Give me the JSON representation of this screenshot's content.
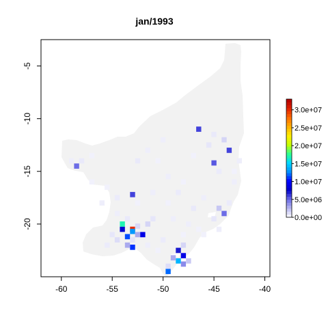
{
  "title": "jan/1993",
  "chart_data": {
    "type": "heatmap",
    "xlim": [
      -62,
      -39.5
    ],
    "ylim": [
      -25,
      -2.5
    ],
    "x_ticks": [
      -60,
      -55,
      -50,
      -45,
      -40
    ],
    "x_tick_labels": [
      "-60",
      "-55",
      "-50",
      "-45",
      "-40"
    ],
    "y_ticks": [
      -5,
      -10,
      -15,
      -20
    ],
    "y_tick_labels": [
      "-5",
      "-10",
      "-15",
      "-20"
    ],
    "legend": {
      "position": "right",
      "range": [
        0,
        33000000
      ],
      "ticks": [
        0,
        5000000,
        10000000,
        15000000,
        20000000,
        25000000,
        30000000
      ],
      "tick_labels": [
        "0.0e+00",
        "5.0e+06",
        "1.0e+07",
        "1.5e+07",
        "2.0e+07",
        "2.5e+07",
        "3.0e+07"
      ],
      "colors": [
        "#ffffff",
        "#b8b8f0",
        "#6a6ae6",
        "#0000c8",
        "#0000ff",
        "#0090ff",
        "#00d8ff",
        "#30ff90",
        "#c8ff00",
        "#ffee00",
        "#ffb000",
        "#ff6a00",
        "#e02000",
        "#b00000"
      ]
    },
    "background_color": "#f2f2f2",
    "cells": [
      [
        -48.5,
        -23.5,
        14000000
      ],
      [
        -48.0,
        -23.0,
        9000000
      ],
      [
        -49.5,
        -24.5,
        12000000
      ],
      [
        -48.5,
        -22.5,
        7000000
      ],
      [
        -48.0,
        -23.8,
        4000000
      ],
      [
        -49.0,
        -23.2,
        3000000
      ],
      [
        -47.5,
        -23.5,
        2000000
      ],
      [
        -48.0,
        -22.0,
        1500000
      ],
      [
        -49.5,
        -24.0,
        1200000
      ],
      [
        -53.0,
        -20.5,
        30000000
      ],
      [
        -53.0,
        -20.7,
        13000000
      ],
      [
        -53.0,
        -22.2,
        11000000
      ],
      [
        -53.5,
        -21.2,
        11500000
      ],
      [
        -54.0,
        -20.5,
        8000000
      ],
      [
        -52.5,
        -21.0,
        3000000
      ],
      [
        -52.0,
        -21.0,
        9000000
      ],
      [
        -54.0,
        -20.0,
        17000000
      ],
      [
        -53.5,
        -22.0,
        3000000
      ],
      [
        -51.5,
        -20.0,
        1500000
      ],
      [
        -54.5,
        -21.5,
        1200000
      ],
      [
        -53.0,
        -21.5,
        1000000
      ],
      [
        -52.5,
        -20.2,
        1400000
      ],
      [
        -55.0,
        -21.0,
        900000
      ],
      [
        -55.5,
        -22.0,
        700000
      ],
      [
        -53.5,
        -19.5,
        800000
      ],
      [
        -51.0,
        -19.5,
        900000
      ],
      [
        -54.5,
        -19.0,
        600000
      ],
      [
        -53.0,
        -17.2,
        6000000
      ],
      [
        -52.5,
        -14.0,
        800000
      ],
      [
        -51.5,
        -13.0,
        600000
      ],
      [
        -58.5,
        -14.5,
        5000000
      ],
      [
        -58.0,
        -14.0,
        800000
      ],
      [
        -59.0,
        -14.0,
        600000
      ],
      [
        -57.0,
        -13.5,
        500000
      ],
      [
        -43.5,
        -13.0,
        6000000
      ],
      [
        -45.0,
        -14.2,
        5500000
      ],
      [
        -46.5,
        -11.0,
        6000000
      ],
      [
        -44.0,
        -12.0,
        1500000
      ],
      [
        -45.5,
        -12.5,
        900000
      ],
      [
        -45.0,
        -11.5,
        800000
      ],
      [
        -44.5,
        -15.0,
        700000
      ],
      [
        -43.0,
        -16.0,
        600000
      ],
      [
        -44.0,
        -19.0,
        5000000
      ],
      [
        -44.5,
        -18.5,
        2000000
      ],
      [
        -45.0,
        -19.5,
        900000
      ],
      [
        -47.0,
        -18.5,
        800000
      ],
      [
        -46.0,
        -17.5,
        600000
      ],
      [
        -43.5,
        -18.0,
        700000
      ],
      [
        -48.5,
        -17.0,
        700000
      ],
      [
        -49.5,
        -15.5,
        600000
      ],
      [
        -50.5,
        -14.0,
        500000
      ],
      [
        -50.0,
        -12.0,
        600000
      ],
      [
        -47.0,
        -13.5,
        500000
      ],
      [
        -48.0,
        -16.0,
        500000
      ],
      [
        -42.5,
        -14.0,
        600000
      ],
      [
        -43.0,
        -15.0,
        500000
      ],
      [
        -55.5,
        -16.5,
        500000
      ],
      [
        -56.0,
        -18.0,
        600000
      ],
      [
        -54.5,
        -17.5,
        700000
      ],
      [
        -57.0,
        -16.0,
        500000
      ],
      [
        -51.0,
        -17.0,
        600000
      ],
      [
        -49.5,
        -18.0,
        500000
      ],
      [
        -47.5,
        -20.0,
        600000
      ],
      [
        -46.5,
        -20.5,
        500000
      ],
      [
        -50.0,
        -21.5,
        700000
      ],
      [
        -51.5,
        -22.0,
        600000
      ],
      [
        -50.5,
        -22.5,
        500000
      ],
      [
        -52.5,
        -18.0,
        500000
      ],
      [
        -49.0,
        -19.5,
        600000
      ],
      [
        -46.0,
        -21.0,
        500000
      ],
      [
        -44.5,
        -20.5,
        600000
      ],
      [
        -48.0,
        -21.0,
        500000
      ]
    ]
  }
}
